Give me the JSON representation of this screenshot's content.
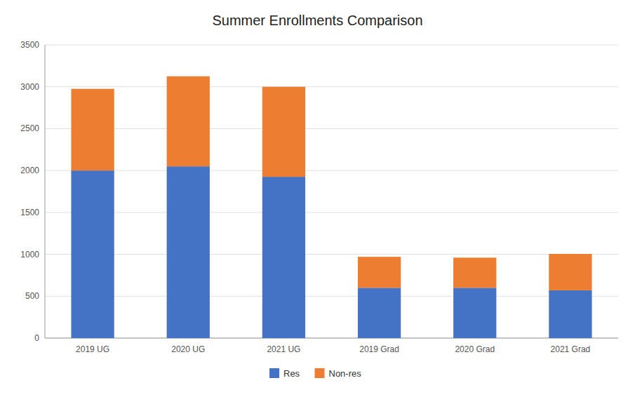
{
  "chart_data": {
    "type": "bar",
    "title": "Summer Enrollments Comparison",
    "categories": [
      "2019 UG",
      "2020 UG",
      "2021 UG",
      "2019 Grad",
      "2020 Grad",
      "2021 Grad"
    ],
    "series": [
      {
        "name": "Res",
        "color": "#4472c4",
        "values": [
          2000,
          2050,
          1925,
          600,
          600,
          570
        ]
      },
      {
        "name": "Non-res",
        "color": "#ed7d31",
        "values": [
          975,
          1075,
          1075,
          370,
          360,
          435
        ]
      }
    ],
    "ylim": [
      0,
      3500
    ],
    "yticks": [
      0,
      500,
      1000,
      1500,
      2000,
      2500,
      3000,
      3500
    ],
    "stacked": true,
    "grid": true,
    "legend": "bottom"
  }
}
